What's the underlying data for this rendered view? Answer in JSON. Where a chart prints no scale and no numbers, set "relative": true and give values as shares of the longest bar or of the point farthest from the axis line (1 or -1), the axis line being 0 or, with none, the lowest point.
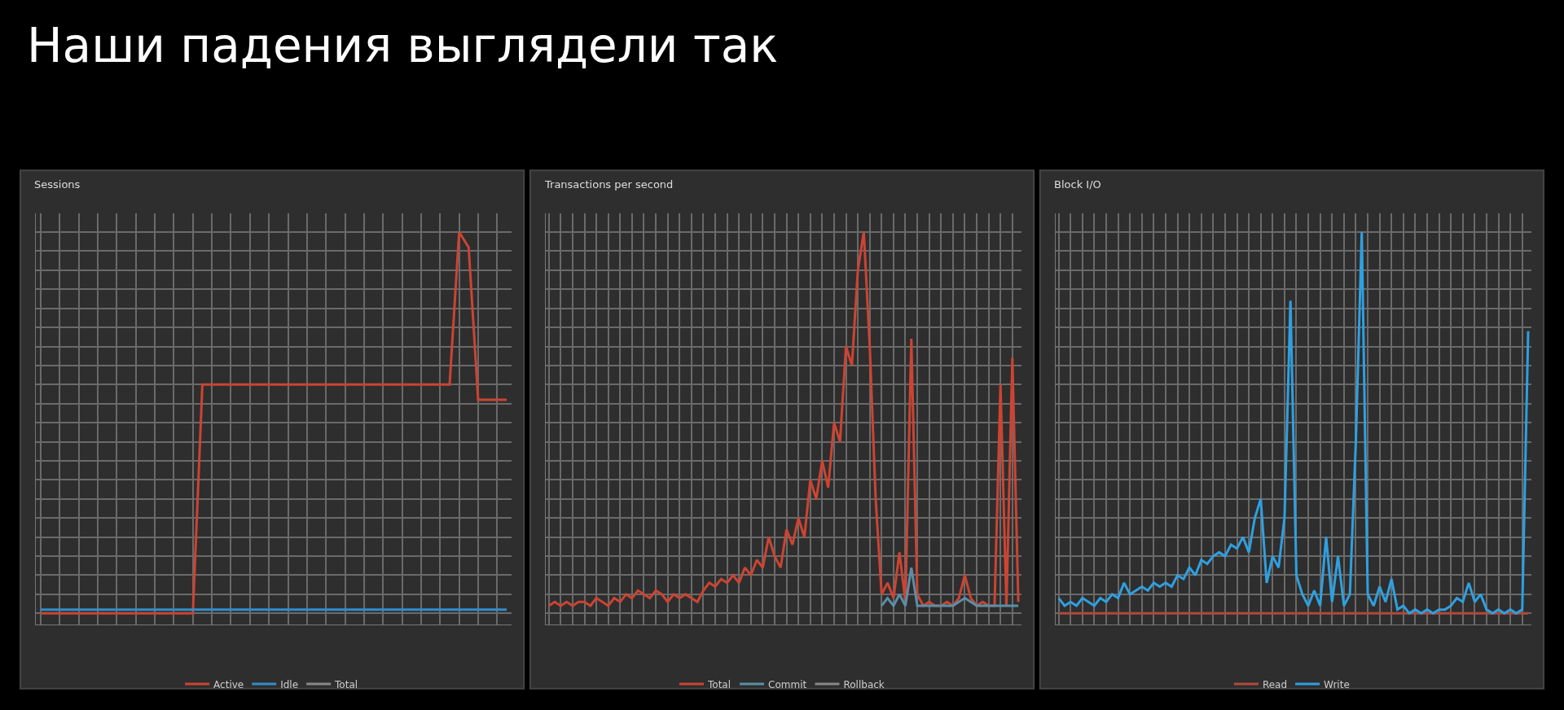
{
  "chart_data": [
    {
      "type": "other",
      "title": "Наши падения выглядели так"
    },
    {
      "type": "line",
      "title": "Sessions",
      "relative": true,
      "grid": true,
      "legend": "bottom",
      "categories": [
        null,
        null,
        null,
        null,
        null,
        null,
        null,
        null,
        null,
        null,
        null,
        null,
        null,
        null,
        null,
        null,
        null,
        null,
        null,
        null,
        null,
        null,
        null,
        null,
        null,
        null,
        null,
        null,
        null,
        null,
        null,
        null,
        null,
        null,
        null,
        null,
        null,
        null,
        null,
        null,
        null,
        null,
        null,
        null,
        null,
        null,
        null,
        null,
        null,
        null
      ],
      "series": [
        {
          "name": "Active",
          "color": "#cc4433",
          "values": [
            0,
            0,
            0,
            0,
            0,
            0,
            0,
            0,
            0,
            0,
            0,
            0,
            0,
            0,
            0,
            0,
            0,
            0.6,
            0.6,
            0.6,
            0.6,
            0.6,
            0.6,
            0.6,
            0.6,
            0.6,
            0.6,
            0.6,
            0.6,
            0.6,
            0.6,
            0.6,
            0.6,
            0.6,
            0.6,
            0.6,
            0.6,
            0.6,
            0.6,
            0.6,
            0.6,
            0.6,
            0.6,
            0.6,
            1.0,
            0.96,
            0.56,
            0.56,
            0.56,
            0.56
          ]
        },
        {
          "name": "Idle",
          "color": "#2f8fcc",
          "values": [
            0.01,
            0.01,
            0.01,
            0.01,
            0.01,
            0.01,
            0.01,
            0.01,
            0.01,
            0.01,
            0.01,
            0.01,
            0.01,
            0.01,
            0.01,
            0.01,
            0.01,
            0.01,
            0.01,
            0.01,
            0.01,
            0.01,
            0.01,
            0.01,
            0.01,
            0.01,
            0.01,
            0.01,
            0.01,
            0.01,
            0.01,
            0.01,
            0.01,
            0.01,
            0.01,
            0.01,
            0.01,
            0.01,
            0.01,
            0.01,
            0.01,
            0.01,
            0.01,
            0.01,
            0.01,
            0.01,
            0.01,
            0.01,
            0.01,
            0.01
          ]
        },
        {
          "name": "Total",
          "color": "#888888",
          "values": [
            null,
            null,
            null,
            null,
            null,
            null,
            null,
            null,
            null,
            null,
            null,
            null,
            null,
            null,
            null,
            null,
            null,
            null,
            null,
            null,
            null,
            null,
            null,
            null,
            null,
            null,
            null,
            null,
            null,
            null,
            null,
            null,
            null,
            null,
            null,
            null,
            null,
            null,
            null,
            null,
            null,
            null,
            null,
            null,
            null,
            null,
            null,
            null,
            null,
            null
          ]
        }
      ]
    },
    {
      "type": "line",
      "title": "Transactions per second",
      "relative": true,
      "grid": true,
      "legend": "bottom",
      "categories": [
        null,
        null,
        null,
        null,
        null,
        null,
        null,
        null,
        null,
        null,
        null,
        null,
        null,
        null,
        null,
        null,
        null,
        null,
        null,
        null,
        null,
        null,
        null,
        null,
        null,
        null,
        null,
        null,
        null,
        null,
        null,
        null,
        null,
        null,
        null,
        null,
        null,
        null,
        null,
        null,
        null,
        null,
        null,
        null,
        null,
        null,
        null,
        null,
        null,
        null,
        null,
        null,
        null,
        null,
        null,
        null,
        null,
        null,
        null,
        null,
        null,
        null,
        null,
        null,
        null,
        null,
        null,
        null,
        null,
        null,
        null,
        null,
        null,
        null,
        null,
        null,
        null,
        null,
        null,
        null
      ],
      "series": [
        {
          "name": "Total",
          "color": "#cc4433",
          "values": [
            0.02,
            0.03,
            0.02,
            0.03,
            0.02,
            0.03,
            0.03,
            0.02,
            0.04,
            0.03,
            0.02,
            0.04,
            0.03,
            0.05,
            0.04,
            0.06,
            0.05,
            0.04,
            0.06,
            0.05,
            0.03,
            0.05,
            0.04,
            0.05,
            0.04,
            0.03,
            0.06,
            0.08,
            0.07,
            0.09,
            0.08,
            0.1,
            0.08,
            0.12,
            0.1,
            0.14,
            0.12,
            0.2,
            0.15,
            0.12,
            0.22,
            0.18,
            0.25,
            0.2,
            0.35,
            0.3,
            0.4,
            0.33,
            0.5,
            0.45,
            0.7,
            0.65,
            0.9,
            1.0,
            0.7,
            0.3,
            0.05,
            0.08,
            0.04,
            0.16,
            0.03,
            0.72,
            0.05,
            0.02,
            0.03,
            0.02,
            0.02,
            0.03,
            0.02,
            0.04,
            0.1,
            0.04,
            0.02,
            0.03,
            0.02,
            0.02,
            0.6,
            0.02,
            0.67,
            0.03
          ]
        },
        {
          "name": "Commit",
          "color": "#5b8ea8",
          "values": [
            null,
            null,
            null,
            null,
            null,
            null,
            null,
            null,
            null,
            null,
            null,
            null,
            null,
            null,
            null,
            null,
            null,
            null,
            null,
            null,
            null,
            null,
            null,
            null,
            null,
            null,
            null,
            null,
            null,
            null,
            null,
            null,
            null,
            null,
            null,
            null,
            null,
            null,
            null,
            null,
            null,
            null,
            null,
            null,
            null,
            null,
            null,
            null,
            null,
            null,
            null,
            null,
            null,
            null,
            null,
            null,
            0.02,
            0.04,
            0.02,
            0.05,
            0.02,
            0.12,
            0.02,
            0.02,
            0.02,
            0.02,
            0.02,
            0.02,
            0.02,
            0.03,
            0.04,
            0.03,
            0.02,
            0.02,
            0.02,
            0.02,
            0.02,
            0.02,
            0.02,
            0.02
          ]
        },
        {
          "name": "Rollback",
          "color": "#888888",
          "values": [
            null,
            null,
            null,
            null,
            null,
            null,
            null,
            null,
            null,
            null,
            null,
            null,
            null,
            null,
            null,
            null,
            null,
            null,
            null,
            null,
            null,
            null,
            null,
            null,
            null,
            null,
            null,
            null,
            null,
            null,
            null,
            null,
            null,
            null,
            null,
            null,
            null,
            null,
            null,
            null,
            null,
            null,
            null,
            null,
            null,
            null,
            null,
            null,
            null,
            null,
            null,
            null,
            null,
            null,
            null,
            null,
            null,
            null,
            null,
            null,
            null,
            null,
            null,
            null,
            null,
            null,
            null,
            null,
            null,
            null,
            null,
            null,
            null,
            null,
            null,
            null,
            null,
            null,
            null,
            null
          ]
        }
      ]
    },
    {
      "type": "line",
      "title": "Block I/O",
      "relative": true,
      "grid": true,
      "legend": "bottom",
      "categories": [
        null,
        null,
        null,
        null,
        null,
        null,
        null,
        null,
        null,
        null,
        null,
        null,
        null,
        null,
        null,
        null,
        null,
        null,
        null,
        null,
        null,
        null,
        null,
        null,
        null,
        null,
        null,
        null,
        null,
        null,
        null,
        null,
        null,
        null,
        null,
        null,
        null,
        null,
        null,
        null,
        null,
        null,
        null,
        null,
        null,
        null,
        null,
        null,
        null,
        null,
        null,
        null,
        null,
        null,
        null,
        null,
        null,
        null,
        null,
        null,
        null,
        null,
        null,
        null,
        null,
        null,
        null,
        null,
        null,
        null,
        null,
        null,
        null,
        null,
        null,
        null,
        null,
        null,
        null,
        null
      ],
      "series": [
        {
          "name": "Read",
          "color": "#b04a3a",
          "values": [
            0,
            0,
            0,
            0,
            0,
            0,
            0,
            0,
            0,
            0,
            0,
            0,
            0,
            0,
            0,
            0,
            0,
            0,
            0,
            0,
            0,
            0,
            0,
            0,
            0,
            0,
            0,
            0,
            0,
            0,
            0,
            0,
            0,
            0,
            0,
            0,
            0,
            0,
            0,
            0,
            0,
            0,
            0,
            0,
            0,
            0,
            0,
            0,
            0,
            0,
            0,
            0,
            0,
            0,
            0,
            0,
            0,
            0,
            0,
            0,
            0,
            0,
            0,
            0,
            0,
            0,
            0,
            0,
            0,
            0,
            0,
            0,
            0,
            0,
            0,
            0,
            0,
            0,
            0,
            0
          ]
        },
        {
          "name": "Write",
          "color": "#2fa0e0",
          "values": [
            0.04,
            0.02,
            0.03,
            0.02,
            0.04,
            0.03,
            0.02,
            0.04,
            0.03,
            0.05,
            0.04,
            0.08,
            0.05,
            0.06,
            0.07,
            0.06,
            0.08,
            0.07,
            0.08,
            0.07,
            0.1,
            0.09,
            0.12,
            0.1,
            0.14,
            0.13,
            0.15,
            0.16,
            0.15,
            0.18,
            0.17,
            0.2,
            0.16,
            0.25,
            0.3,
            0.08,
            0.15,
            0.12,
            0.25,
            0.82,
            0.1,
            0.05,
            0.02,
            0.06,
            0.02,
            0.2,
            0.03,
            0.15,
            0.02,
            0.05,
            0.45,
            1.0,
            0.05,
            0.02,
            0.07,
            0.03,
            0.09,
            0.01,
            0.02,
            0.0,
            0.01,
            0.0,
            0.01,
            0.0,
            0.01,
            0.01,
            0.02,
            0.04,
            0.03,
            0.08,
            0.03,
            0.05,
            0.01,
            0.0,
            0.01,
            0.0,
            0.01,
            0.0,
            0.01,
            0.74
          ]
        }
      ]
    }
  ]
}
